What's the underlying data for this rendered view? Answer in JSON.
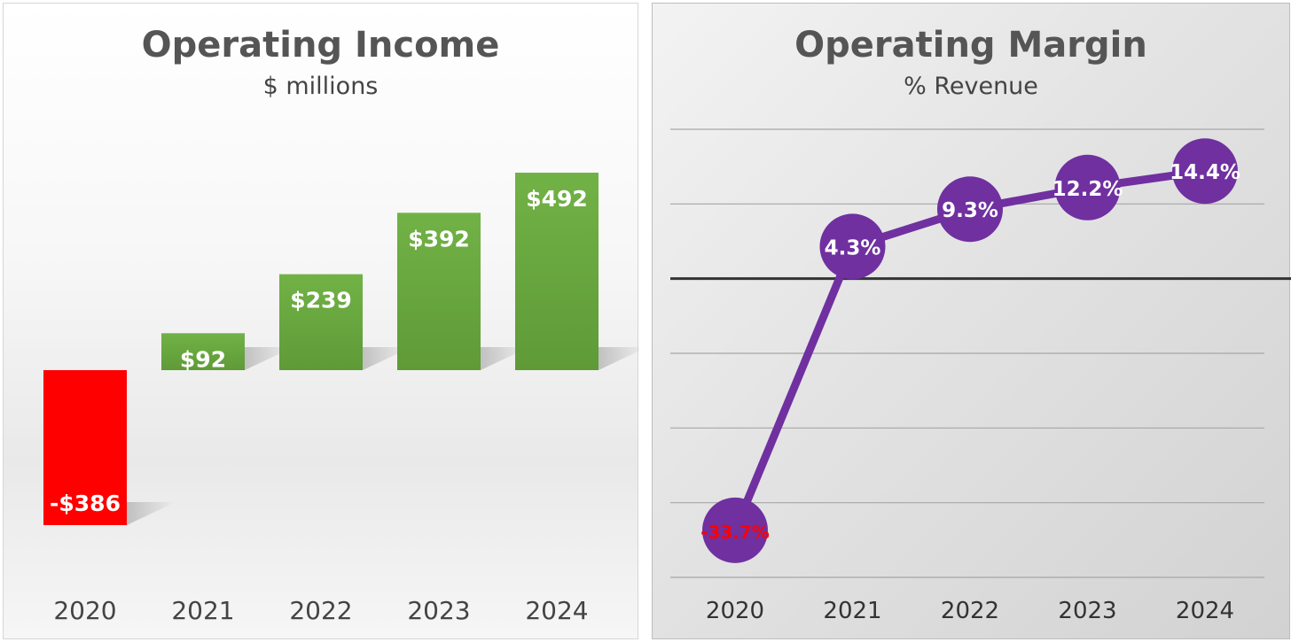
{
  "chart_data": [
    {
      "type": "bar",
      "title": "Operating Income",
      "subtitle": "$ millions",
      "categories": [
        "2020",
        "2021",
        "2022",
        "2023",
        "2024"
      ],
      "values": [
        -386,
        92,
        239,
        392,
        492
      ],
      "labels": [
        "-$386",
        "$92",
        "$239",
        "$392",
        "$492"
      ],
      "grid": false,
      "colors": {
        "positive": "#6aaa3f",
        "negative": "#ff0000",
        "label": "#ffffff",
        "tick": "#444444"
      }
    },
    {
      "type": "line",
      "title": "Operating Margin",
      "subtitle": "% Revenue",
      "categories": [
        "2020",
        "2021",
        "2022",
        "2023",
        "2024"
      ],
      "values": [
        -33.7,
        4.3,
        9.3,
        12.2,
        14.4
      ],
      "labels": [
        "-33.7%",
        "4.3%",
        "9.3%",
        "12.2%",
        "14.4%"
      ],
      "ylim": [
        -40,
        20
      ],
      "grid": true,
      "colors": {
        "line": "#7030a0",
        "marker": "#7030a0",
        "label": "#ffffff",
        "negative_label": "#ff0000",
        "zero_line": "#333333",
        "grid": "#a6a6a6",
        "tick": "#333333"
      }
    }
  ]
}
